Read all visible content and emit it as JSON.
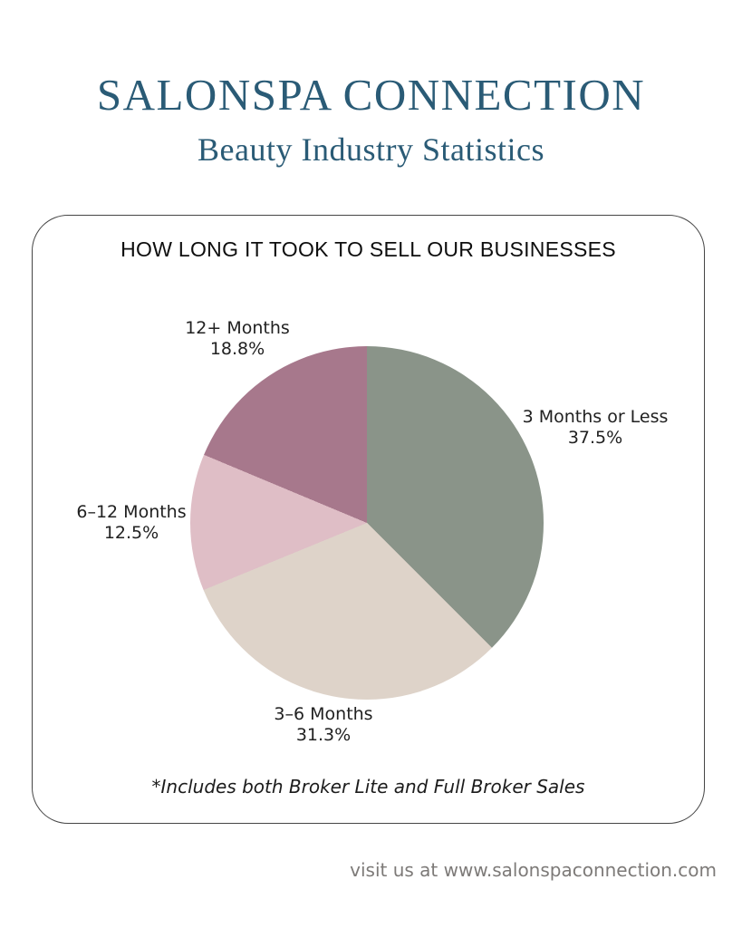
{
  "header": {
    "brand": "SALONSPA CONNECTION",
    "subtitle": "Beauty Industry Statistics"
  },
  "card": {
    "title": "HOW LONG IT TOOK TO SELL OUR BUSINESSES",
    "footnote": "*Includes both Broker Lite and Full Broker Sales"
  },
  "footer": {
    "text": "visit us at www.salonspaconnection.com"
  },
  "colors": {
    "brand_teal": "#2a5b76",
    "card_border": "#454545",
    "label_text": "#212121",
    "footer_gray": "#7d7a78"
  },
  "chart_data": {
    "type": "pie",
    "title": "HOW LONG IT TOOK TO SELL OUR BUSINESSES",
    "unit": "percent",
    "start_angle_deg": 0,
    "direction": "clockwise",
    "legend": "none",
    "labels_position": "outside",
    "slices": [
      {
        "label": "3 Months or Less",
        "value": 37.5,
        "pct_label": "37.5%",
        "color": "#8a9489"
      },
      {
        "label": "3–6 Months",
        "value": 31.3,
        "pct_label": "31.3%",
        "color": "#ded3c9"
      },
      {
        "label": "6–12 Months",
        "value": 12.5,
        "pct_label": "12.5%",
        "color": "#dfbec6"
      },
      {
        "label": "12+ Months",
        "value": 18.8,
        "pct_label": "18.8%",
        "color": "#a7788c"
      }
    ]
  }
}
